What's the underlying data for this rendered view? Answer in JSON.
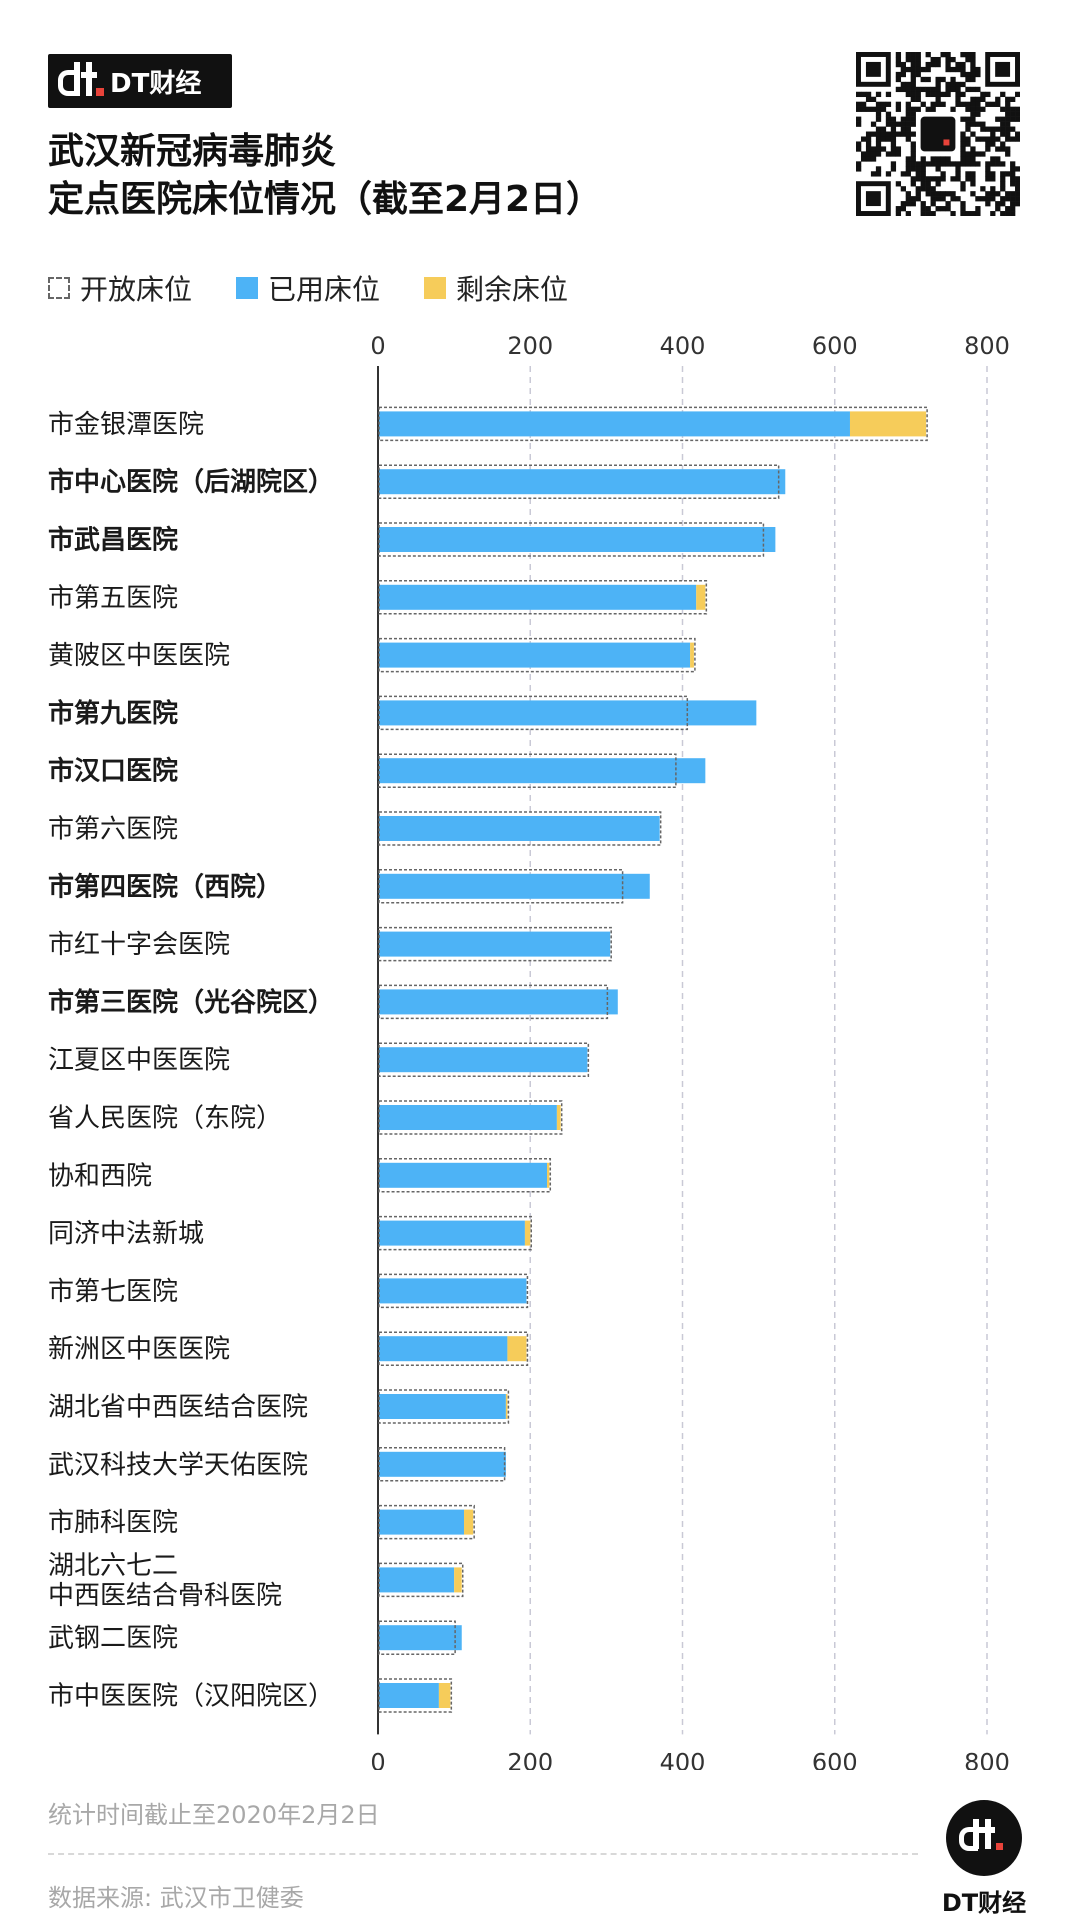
{
  "brand": {
    "name": "DT财经"
  },
  "title": {
    "line1": "武汉新冠病毒肺炎",
    "line2": "定点医院床位情况（截至2月2日）"
  },
  "legend": {
    "open": "开放床位",
    "used": "已用床位",
    "remaining": "剩余床位"
  },
  "colors": {
    "used": "#4db3f6",
    "remaining": "#f6cc5a",
    "open_border": "#666666"
  },
  "chart_data": {
    "type": "bar",
    "orientation": "horizontal",
    "xlim": [
      0,
      800
    ],
    "xticks": [
      0,
      200,
      400,
      600,
      800
    ],
    "grid": true,
    "legend_position": "top-left",
    "series": [
      {
        "name": "开放床位",
        "values": [
          720,
          525,
          505,
          430,
          415,
          405,
          390,
          370,
          320,
          305,
          300,
          275,
          240,
          225,
          200,
          195,
          195,
          170,
          165,
          125,
          110,
          100,
          95
        ]
      },
      {
        "name": "已用床位",
        "values": [
          620,
          535,
          522,
          418,
          410,
          497,
          430,
          370,
          357,
          305,
          315,
          275,
          235,
          222,
          193,
          195,
          170,
          168,
          168,
          113,
          100,
          110,
          80
        ]
      },
      {
        "name": "剩余床位",
        "values": [
          100,
          0,
          0,
          12,
          5,
          0,
          0,
          0,
          0,
          0,
          0,
          0,
          5,
          3,
          7,
          0,
          25,
          2,
          0,
          12,
          10,
          0,
          15
        ]
      }
    ],
    "categories": [
      {
        "label": "市金银潭医院",
        "bold": false
      },
      {
        "label": "市中心医院（后湖院区）",
        "bold": true
      },
      {
        "label": "市武昌医院",
        "bold": true
      },
      {
        "label": "市第五医院",
        "bold": false
      },
      {
        "label": "黄陂区中医医院",
        "bold": false
      },
      {
        "label": "市第九医院",
        "bold": true
      },
      {
        "label": "市汉口医院",
        "bold": true
      },
      {
        "label": "市第六医院",
        "bold": false
      },
      {
        "label": "市第四医院（西院）",
        "bold": true
      },
      {
        "label": "市红十字会医院",
        "bold": false
      },
      {
        "label": "市第三医院（光谷院区）",
        "bold": true
      },
      {
        "label": "江夏区中医医院",
        "bold": false
      },
      {
        "label": "省人民医院（东院）",
        "bold": false
      },
      {
        "label": "协和西院",
        "bold": false
      },
      {
        "label": "同济中法新城",
        "bold": false
      },
      {
        "label": "市第七医院",
        "bold": false
      },
      {
        "label": "新洲区中医医院",
        "bold": false
      },
      {
        "label": "湖北省中西医结合医院",
        "bold": false
      },
      {
        "label": "武汉科技大学天佑医院",
        "bold": false
      },
      {
        "label": "市肺科医院",
        "bold": false
      },
      {
        "label": "湖北六七二\n中西医结合骨科医院",
        "bold": false
      },
      {
        "label": "武钢二医院",
        "bold": false
      },
      {
        "label": "市中医医院（汉阳院区）",
        "bold": false
      }
    ]
  },
  "footer": {
    "note": "统计时间截止至2020年2月2日",
    "source": "数据来源: 武汉市卫健委"
  }
}
